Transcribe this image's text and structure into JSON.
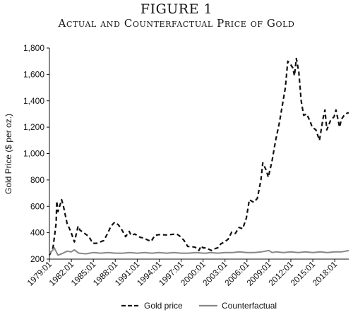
{
  "figure": {
    "label": "FIGURE 1",
    "subtitle": "Actual and Counterfactual Price of Gold"
  },
  "chart_data": {
    "type": "line",
    "title": "Actual and Counterfactual Price of Gold",
    "xlabel": "",
    "ylabel": "Gold Price ($ per oz.)",
    "ylim": [
      200,
      1800
    ],
    "xlim": [
      "1979:01",
      "2019:12"
    ],
    "grid": false,
    "legend_position": "bottom",
    "yticks": [
      "200",
      "400",
      "600",
      "800",
      "1,000",
      "1,200",
      "1,400",
      "1,600",
      "1,800"
    ],
    "ytick_values": [
      200,
      400,
      600,
      800,
      1000,
      1200,
      1400,
      1600,
      1800
    ],
    "xticks": [
      "1979:01",
      "1982:01",
      "1985:01",
      "1988:01",
      "1991:01",
      "1994:01",
      "1997:01",
      "2000:01",
      "2003:01",
      "2006:01",
      "2009:01",
      "2012:01",
      "2015:01",
      "2018:01"
    ],
    "series": [
      {
        "name": "Gold price",
        "style": "dashed",
        "color": "#111111",
        "points": [
          [
            "1979:01",
            230
          ],
          [
            "1979:07",
            290
          ],
          [
            "1979:12",
            470
          ],
          [
            "1980:01",
            640
          ],
          [
            "1980:03",
            560
          ],
          [
            "1980:09",
            650
          ],
          [
            "1980:12",
            600
          ],
          [
            "1981:06",
            470
          ],
          [
            "1981:12",
            410
          ],
          [
            "1982:06",
            330
          ],
          [
            "1982:12",
            450
          ],
          [
            "1983:03",
            420
          ],
          [
            "1983:09",
            400
          ],
          [
            "1984:06",
            370
          ],
          [
            "1984:12",
            320
          ],
          [
            "1985:06",
            320
          ],
          [
            "1985:12",
            330
          ],
          [
            "1986:06",
            340
          ],
          [
            "1986:12",
            390
          ],
          [
            "1987:06",
            450
          ],
          [
            "1987:12",
            480
          ],
          [
            "1988:06",
            460
          ],
          [
            "1988:12",
            420
          ],
          [
            "1989:06",
            370
          ],
          [
            "1989:12",
            410
          ],
          [
            "1990:03",
            380
          ],
          [
            "1990:09",
            390
          ],
          [
            "1991:06",
            365
          ],
          [
            "1991:12",
            360
          ],
          [
            "1992:06",
            345
          ],
          [
            "1992:12",
            335
          ],
          [
            "1993:06",
            380
          ],
          [
            "1993:12",
            385
          ],
          [
            "1994:06",
            385
          ],
          [
            "1994:12",
            383
          ],
          [
            "1995:06",
            385
          ],
          [
            "1995:12",
            388
          ],
          [
            "1996:06",
            390
          ],
          [
            "1996:12",
            370
          ],
          [
            "1997:06",
            340
          ],
          [
            "1997:12",
            295
          ],
          [
            "1998:06",
            295
          ],
          [
            "1998:12",
            290
          ],
          [
            "1999:06",
            265
          ],
          [
            "1999:10",
            300
          ],
          [
            "2000:01",
            285
          ],
          [
            "2000:06",
            285
          ],
          [
            "2001:03",
            265
          ],
          [
            "2001:09",
            280
          ],
          [
            "2002:01",
            285
          ],
          [
            "2002:06",
            315
          ],
          [
            "2002:12",
            330
          ],
          [
            "2003:06",
            350
          ],
          [
            "2003:12",
            405
          ],
          [
            "2004:06",
            395
          ],
          [
            "2004:12",
            440
          ],
          [
            "2005:06",
            430
          ],
          [
            "2005:12",
            510
          ],
          [
            "2006:05",
            650
          ],
          [
            "2006:12",
            630
          ],
          [
            "2007:06",
            660
          ],
          [
            "2007:12",
            800
          ],
          [
            "2008:03",
            930
          ],
          [
            "2008:09",
            870
          ],
          [
            "2008:12",
            820
          ],
          [
            "2009:06",
            940
          ],
          [
            "2009:12",
            1100
          ],
          [
            "2010:06",
            1230
          ],
          [
            "2010:12",
            1390
          ],
          [
            "2011:04",
            1500
          ],
          [
            "2011:08",
            1700
          ],
          [
            "2011:12",
            1680
          ],
          [
            "2012:04",
            1650
          ],
          [
            "2012:07",
            1590
          ],
          [
            "2012:10",
            1720
          ],
          [
            "2013:02",
            1620
          ],
          [
            "2013:06",
            1400
          ],
          [
            "2013:10",
            1290
          ],
          [
            "2014:03",
            1300
          ],
          [
            "2014:09",
            1240
          ],
          [
            "2014:12",
            1200
          ],
          [
            "2015:06",
            1180
          ],
          [
            "2015:12",
            1100
          ],
          [
            "2016:06",
            1270
          ],
          [
            "2016:09",
            1330
          ],
          [
            "2016:12",
            1180
          ],
          [
            "2017:06",
            1250
          ],
          [
            "2017:12",
            1280
          ],
          [
            "2018:03",
            1330
          ],
          [
            "2018:09",
            1200
          ],
          [
            "2018:12",
            1260
          ],
          [
            "2019:06",
            1300
          ],
          [
            "2019:12",
            1310
          ]
        ]
      },
      {
        "name": "Counterfactual",
        "style": "solid",
        "color": "#888888",
        "points": [
          [
            "1979:01",
            245
          ],
          [
            "1979:06",
            265
          ],
          [
            "1979:09",
            285
          ],
          [
            "1980:03",
            230
          ],
          [
            "1980:09",
            240
          ],
          [
            "1981:06",
            260
          ],
          [
            "1982:01",
            255
          ],
          [
            "1982:06",
            270
          ],
          [
            "1983:01",
            245
          ],
          [
            "1984:01",
            240
          ],
          [
            "1985:01",
            250
          ],
          [
            "1986:01",
            245
          ],
          [
            "1987:01",
            250
          ],
          [
            "1988:01",
            245
          ],
          [
            "1989:01",
            245
          ],
          [
            "1990:01",
            250
          ],
          [
            "1991:01",
            245
          ],
          [
            "1992:01",
            250
          ],
          [
            "1993:01",
            245
          ],
          [
            "1994:01",
            250
          ],
          [
            "1995:01",
            245
          ],
          [
            "1996:01",
            250
          ],
          [
            "1997:01",
            245
          ],
          [
            "1998:01",
            245
          ],
          [
            "1999:01",
            250
          ],
          [
            "2000:01",
            245
          ],
          [
            "2000:06",
            245
          ],
          [
            "2001:01",
            250
          ],
          [
            "2002:01",
            245
          ],
          [
            "2003:01",
            250
          ],
          [
            "2004:01",
            250
          ],
          [
            "2005:01",
            255
          ],
          [
            "2006:01",
            250
          ],
          [
            "2007:01",
            250
          ],
          [
            "2008:01",
            255
          ],
          [
            "2009:01",
            265
          ],
          [
            "2009:06",
            250
          ],
          [
            "2010:01",
            255
          ],
          [
            "2011:01",
            250
          ],
          [
            "2012:01",
            255
          ],
          [
            "2013:01",
            250
          ],
          [
            "2014:01",
            255
          ],
          [
            "2015:01",
            250
          ],
          [
            "2016:01",
            255
          ],
          [
            "2017:01",
            250
          ],
          [
            "2018:01",
            255
          ],
          [
            "2019:01",
            255
          ],
          [
            "2019:12",
            265
          ]
        ]
      }
    ]
  }
}
